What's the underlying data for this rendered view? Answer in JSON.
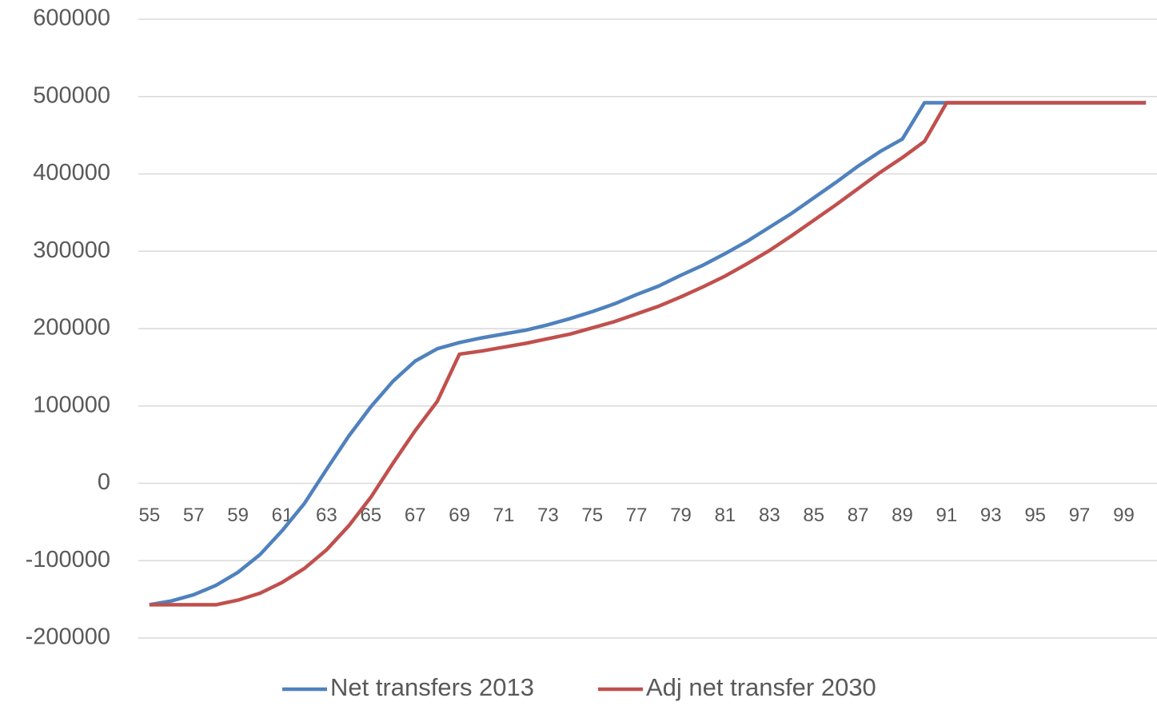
{
  "chart_data": {
    "type": "line",
    "categories": [
      55,
      null,
      57,
      null,
      59,
      null,
      61,
      null,
      63,
      null,
      65,
      null,
      67,
      null,
      69,
      null,
      71,
      null,
      73,
      null,
      75,
      null,
      77,
      null,
      79,
      null,
      81,
      null,
      83,
      null,
      85,
      null,
      87,
      null,
      89,
      null,
      91,
      null,
      93,
      null,
      95,
      null,
      97,
      null,
      99,
      null
    ],
    "series": [
      {
        "name": "Net transfers 2013",
        "color": "#4f81bd",
        "values": [
          -157000,
          -152000,
          -144000,
          -132000,
          -115000,
          -92000,
          -61000,
          -26000,
          18000,
          61000,
          99000,
          132000,
          158000,
          174000,
          182000,
          188000,
          193000,
          198000,
          205000,
          213000,
          222000,
          232000,
          244000,
          255000,
          269000,
          282000,
          297000,
          313000,
          331000,
          349000,
          369000,
          389000,
          410000,
          429000,
          445000,
          492000,
          492000,
          492000,
          492000,
          492000,
          492000,
          492000,
          492000,
          492000,
          492000,
          492000
        ]
      },
      {
        "name": "Adj net transfer 2030",
        "color": "#c0504d",
        "values": [
          -157000,
          -157000,
          -157000,
          -157000,
          -151000,
          -142000,
          -128000,
          -110000,
          -86000,
          -55000,
          -18000,
          26000,
          68000,
          106000,
          167000,
          171000,
          176000,
          181000,
          187000,
          193000,
          201000,
          209000,
          219000,
          229000,
          241000,
          254000,
          268000,
          284000,
          301000,
          320000,
          340000,
          360000,
          381000,
          402000,
          421000,
          442000,
          492000,
          492000,
          492000,
          492000,
          492000,
          492000,
          492000,
          492000,
          492000,
          492000
        ]
      }
    ],
    "ylim": [
      -200000,
      600000
    ],
    "yticks": [
      -200000,
      -100000,
      0,
      100000,
      200000,
      300000,
      400000,
      500000,
      600000
    ],
    "grid": true,
    "legend": "bottom"
  }
}
